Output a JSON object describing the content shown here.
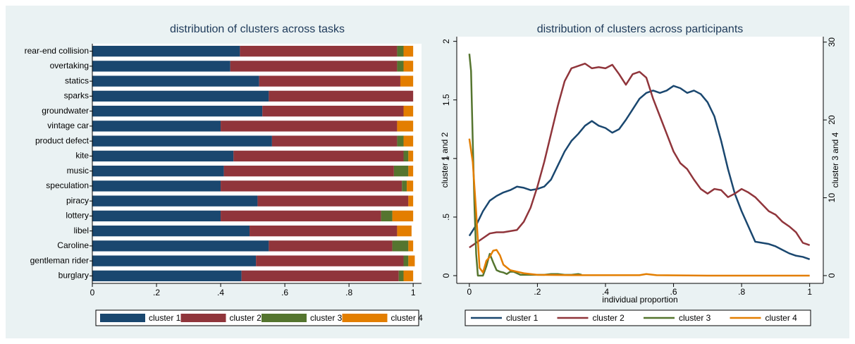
{
  "chart_data": [
    {
      "type": "bar",
      "orientation": "horizontal",
      "stacked": true,
      "title": "distribution of clusters across tasks",
      "categories": [
        "rear-end collision",
        "overtaking",
        "statics",
        "sparks",
        "groundwater",
        "vintage car",
        "product defect",
        "kite",
        "music",
        "speculation",
        "piracy",
        "lottery",
        "libel",
        "Caroline",
        "gentleman rider",
        "burglary"
      ],
      "series": [
        {
          "name": "cluster 1",
          "color": "#1a476f",
          "values": [
            0.46,
            0.43,
            0.52,
            0.55,
            0.53,
            0.4,
            0.56,
            0.44,
            0.41,
            0.4,
            0.515,
            0.4,
            0.49,
            0.55,
            0.51,
            0.465
          ]
        },
        {
          "name": "cluster 2",
          "color": "#90353b",
          "values": [
            0.49,
            0.52,
            0.44,
            0.45,
            0.44,
            0.55,
            0.39,
            0.53,
            0.53,
            0.565,
            0.47,
            0.5,
            0.46,
            0.385,
            0.46,
            0.49
          ]
        },
        {
          "name": "cluster 3",
          "color": "#55752f",
          "values": [
            0.02,
            0.02,
            0,
            0,
            0,
            0,
            0.02,
            0.015,
            0.045,
            0.015,
            0,
            0.035,
            0,
            0.05,
            0.015,
            0.015
          ]
        },
        {
          "name": "cluster 4",
          "color": "#e37e00",
          "values": [
            0.03,
            0.03,
            0.04,
            0,
            0.03,
            0.05,
            0.03,
            0.015,
            0.015,
            0.02,
            0.015,
            0.065,
            0.045,
            0.015,
            0.02,
            0.03
          ]
        }
      ],
      "xlim": [
        0,
        1.026
      ],
      "xticks": [
        0,
        {
          "value": 0.2,
          "label": ".2"
        },
        {
          "value": 0.4,
          "label": ".4"
        },
        {
          "value": 0.6,
          "label": ".6"
        },
        {
          "value": 0.8,
          "label": ".8"
        },
        1
      ],
      "grid": false
    },
    {
      "type": "line",
      "title": "distribution of clusters across participants",
      "xlabel": "individual proportion",
      "ylabel": "cluster 1 and 2",
      "y2label": "cluster 3 and 4",
      "series": [
        {
          "name": "cluster 1",
          "color": "#1a476f",
          "x": [
            0,
            0.02,
            0.04,
            0.06,
            0.08,
            0.1,
            0.12,
            0.14,
            0.16,
            0.18,
            0.2,
            0.22,
            0.24,
            0.26,
            0.28,
            0.3,
            0.32,
            0.34,
            0.36,
            0.38,
            0.4,
            0.42,
            0.44,
            0.46,
            0.48,
            0.5,
            0.52,
            0.54,
            0.56,
            0.58,
            0.6,
            0.62,
            0.64,
            0.66,
            0.68,
            0.7,
            0.72,
            0.74,
            0.76,
            0.78,
            0.8,
            0.82,
            0.84,
            0.86,
            0.88,
            0.9,
            0.92,
            0.94,
            0.96,
            0.98,
            1.0
          ],
          "values": [
            0.34,
            0.43,
            0.55,
            0.64,
            0.68,
            0.71,
            0.73,
            0.76,
            0.75,
            0.73,
            0.74,
            0.76,
            0.82,
            0.94,
            1.06,
            1.15,
            1.21,
            1.28,
            1.32,
            1.28,
            1.26,
            1.22,
            1.25,
            1.33,
            1.42,
            1.51,
            1.56,
            1.58,
            1.56,
            1.58,
            1.62,
            1.6,
            1.56,
            1.58,
            1.55,
            1.48,
            1.36,
            1.15,
            0.91,
            0.7,
            0.55,
            0.42,
            0.29,
            0.28,
            0.27,
            0.25,
            0.22,
            0.19,
            0.17,
            0.16,
            0.14
          ]
        },
        {
          "name": "cluster 2",
          "color": "#90353b",
          "x": [
            0,
            0.02,
            0.04,
            0.06,
            0.08,
            0.1,
            0.12,
            0.14,
            0.16,
            0.18,
            0.2,
            0.22,
            0.24,
            0.26,
            0.28,
            0.3,
            0.32,
            0.34,
            0.36,
            0.38,
            0.4,
            0.42,
            0.44,
            0.46,
            0.48,
            0.5,
            0.52,
            0.54,
            0.56,
            0.58,
            0.6,
            0.62,
            0.64,
            0.66,
            0.68,
            0.7,
            0.72,
            0.74,
            0.76,
            0.78,
            0.8,
            0.82,
            0.84,
            0.86,
            0.88,
            0.9,
            0.92,
            0.94,
            0.96,
            0.98,
            1.0
          ],
          "values": [
            0.24,
            0.28,
            0.32,
            0.36,
            0.37,
            0.37,
            0.38,
            0.39,
            0.46,
            0.58,
            0.76,
            0.97,
            1.21,
            1.45,
            1.66,
            1.77,
            1.79,
            1.81,
            1.77,
            1.78,
            1.77,
            1.8,
            1.72,
            1.63,
            1.72,
            1.74,
            1.69,
            1.51,
            1.36,
            1.21,
            1.06,
            0.96,
            0.91,
            0.82,
            0.74,
            0.7,
            0.74,
            0.73,
            0.67,
            0.7,
            0.74,
            0.71,
            0.67,
            0.61,
            0.55,
            0.52,
            0.46,
            0.42,
            0.37,
            0.28,
            0.26
          ]
        },
        {
          "name": "cluster 3",
          "color": "#55752f",
          "axis": "y2",
          "x": [
            0,
            0.005,
            0.01,
            0.015,
            0.02,
            0.025,
            0.03,
            0.04,
            0.05,
            0.06,
            0.07,
            0.08,
            0.09,
            0.1,
            0.11,
            0.12,
            0.13,
            0.14,
            0.15,
            0.16,
            0.18,
            0.2,
            0.22,
            0.24,
            0.26,
            0.28,
            0.3,
            0.32,
            0.33
          ],
          "values": [
            28.5,
            26.3,
            17.3,
            9.1,
            2.8,
            0,
            0,
            0,
            1.2,
            2.8,
            1.7,
            0.7,
            0.5,
            0.4,
            0.2,
            0.5,
            0.5,
            0.3,
            0.1,
            0.1,
            0.1,
            0.1,
            0.1,
            0.2,
            0.2,
            0.1,
            0.1,
            0.2,
            0.1
          ]
        },
        {
          "name": "cluster 4",
          "color": "#e37e00",
          "axis": "y2",
          "x": [
            0,
            0.01,
            0.02,
            0.03,
            0.04,
            0.05,
            0.06,
            0.07,
            0.08,
            0.09,
            0.1,
            0.12,
            0.14,
            0.16,
            0.2,
            0.3,
            0.5,
            0.52,
            0.55,
            0.7,
            1.0
          ],
          "values": [
            17.6,
            14.6,
            8.2,
            1.0,
            0.4,
            1.9,
            2.4,
            3.2,
            3.3,
            2.6,
            1.4,
            0.7,
            0.5,
            0.3,
            0.1,
            0.05,
            0.05,
            0.2,
            0.05,
            0,
            0
          ]
        }
      ],
      "xlim": [
        -0.037,
        1.04
      ],
      "xticks": [
        0,
        {
          "value": 0.2,
          "label": ".2"
        },
        {
          "value": 0.4,
          "label": ".4"
        },
        {
          "value": 0.6,
          "label": ".6"
        },
        {
          "value": 0.8,
          "label": ".8"
        },
        1
      ],
      "ylim": [
        -0.066,
        2.04
      ],
      "yticks": [
        0,
        {
          "value": 0.5,
          "label": ".5"
        },
        1,
        1.5,
        2
      ],
      "y2lim": [
        -1.0,
        30.7
      ],
      "y2ticks": [
        0,
        10,
        20,
        30
      ],
      "grid": false
    }
  ]
}
